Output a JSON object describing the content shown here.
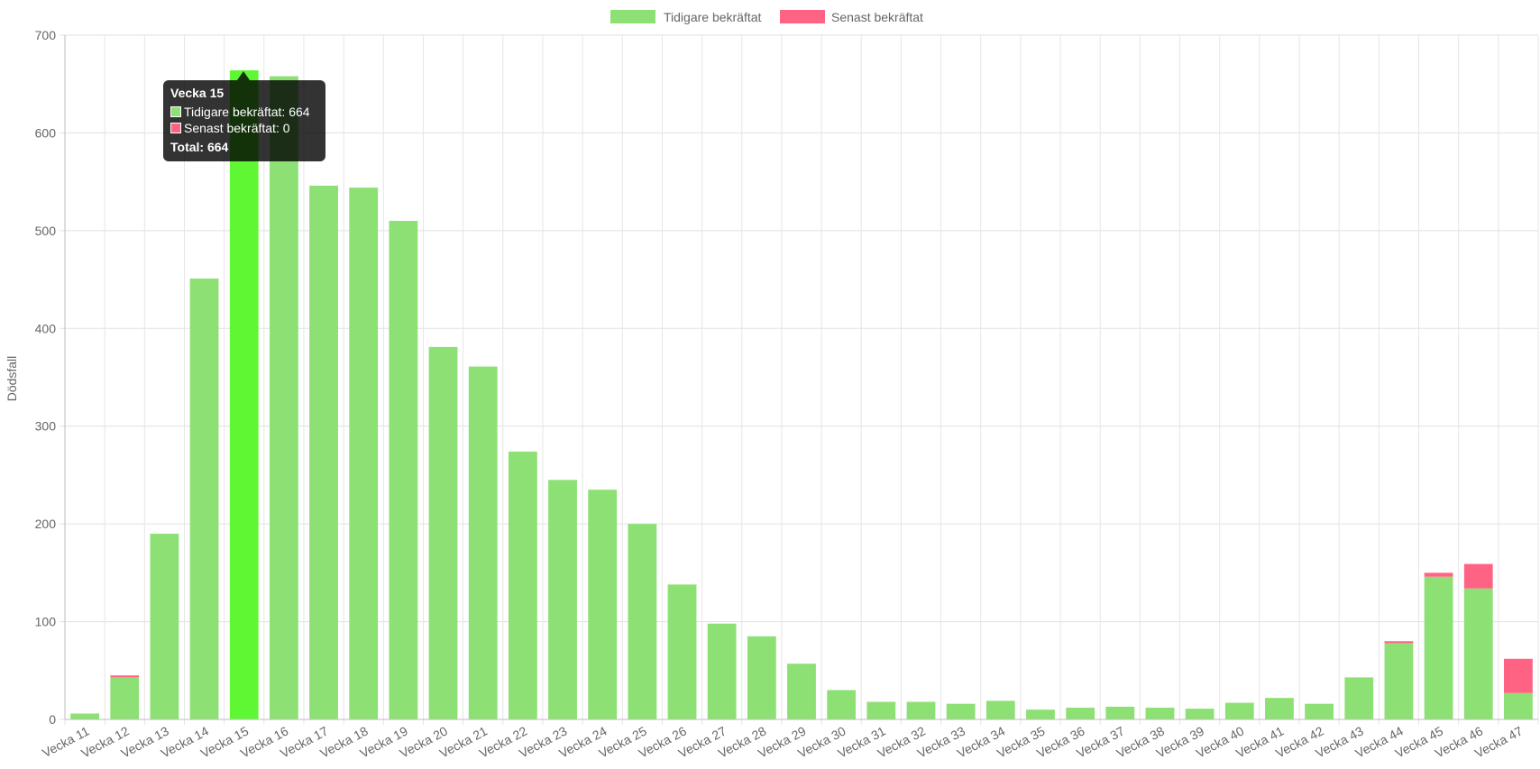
{
  "chart_data": {
    "type": "bar",
    "stacked": true,
    "categories": [
      "Vecka 11",
      "Vecka 12",
      "Vecka 13",
      "Vecka 14",
      "Vecka 15",
      "Vecka 16",
      "Vecka 17",
      "Vecka 18",
      "Vecka 19",
      "Vecka 20",
      "Vecka 21",
      "Vecka 22",
      "Vecka 23",
      "Vecka 24",
      "Vecka 25",
      "Vecka 26",
      "Vecka 27",
      "Vecka 28",
      "Vecka 29",
      "Vecka 30",
      "Vecka 31",
      "Vecka 32",
      "Vecka 33",
      "Vecka 34",
      "Vecka 35",
      "Vecka 36",
      "Vecka 37",
      "Vecka 38",
      "Vecka 39",
      "Vecka 40",
      "Vecka 41",
      "Vecka 42",
      "Vecka 43",
      "Vecka 44",
      "Vecka 45",
      "Vecka 46",
      "Vecka 47"
    ],
    "series": [
      {
        "name": "Tidigare bekräftat",
        "color": "#8de074",
        "values": [
          6,
          43,
          190,
          451,
          664,
          658,
          546,
          544,
          510,
          381,
          361,
          274,
          245,
          235,
          200,
          138,
          98,
          85,
          57,
          30,
          18,
          18,
          16,
          19,
          10,
          12,
          13,
          12,
          11,
          17,
          22,
          16,
          43,
          78,
          146,
          134,
          27
        ]
      },
      {
        "name": "Senast bekräftat",
        "color": "#ff6384",
        "values": [
          0,
          2,
          0,
          0,
          0,
          0,
          0,
          0,
          0,
          0,
          0,
          0,
          0,
          0,
          0,
          0,
          0,
          0,
          0,
          0,
          0,
          0,
          0,
          0,
          0,
          0,
          0,
          0,
          0,
          0,
          0,
          0,
          0,
          2,
          4,
          25,
          35
        ]
      }
    ],
    "highlight": {
      "index": 4,
      "color": "#5ff733"
    },
    "ylabel": "Dödsfall",
    "xlabel": "",
    "ylim": [
      0,
      700
    ],
    "yticks": [
      0,
      100,
      200,
      300,
      400,
      500,
      600,
      700
    ],
    "grid": true,
    "legend": "top-center"
  },
  "legend": {
    "items": [
      {
        "label": "Tidigare bekräftat",
        "color": "#8de074"
      },
      {
        "label": "Senast bekräftat",
        "color": "#ff6384"
      }
    ]
  },
  "tooltip": {
    "title": "Vecka 15",
    "line1": "Tidigare bekräftat: 664",
    "line2": "Senast bekräftat: 0",
    "footer": "Total: 664"
  }
}
